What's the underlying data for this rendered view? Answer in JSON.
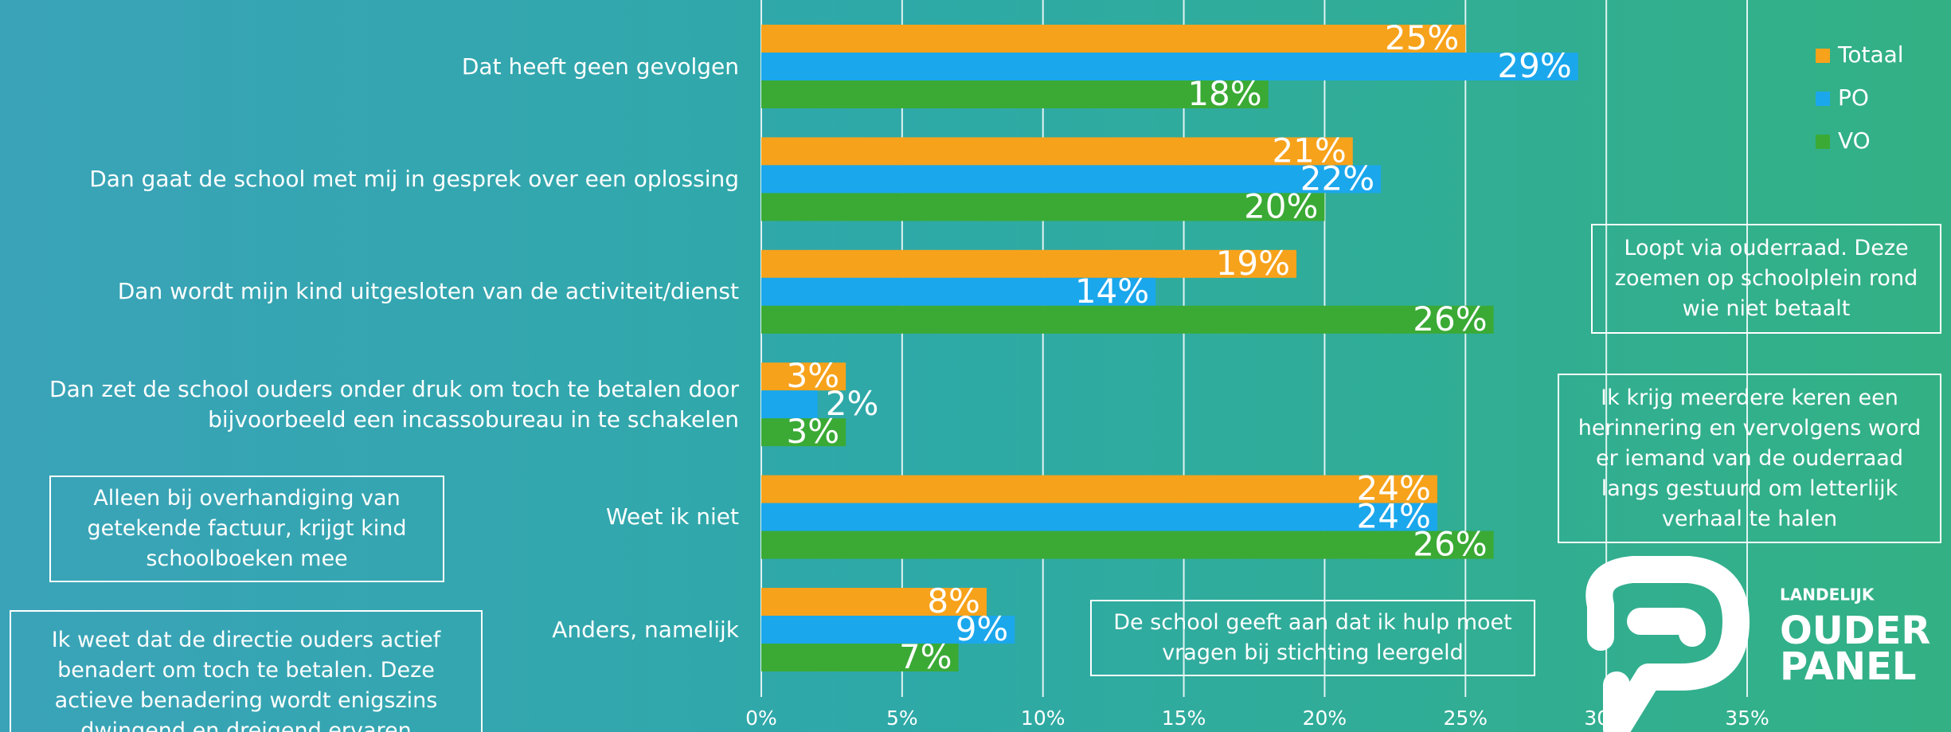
{
  "chart_data": {
    "type": "hbar",
    "categories": [
      "Dat heeft geen gevolgen",
      "Dan gaat de school met mij in gesprek over een oplossing",
      "Dan wordt mijn kind uitgesloten van de activiteit/dienst",
      "Dan zet de school ouders onder druk om toch te betalen door bijvoorbeeld een incassobureau in te schakelen",
      "Weet ik niet",
      "Anders, namelijk"
    ],
    "series": [
      {
        "name": "Totaal",
        "color": "#f7a21b",
        "values": [
          25,
          21,
          19,
          3,
          24,
          8
        ],
        "value_labels": [
          "25%",
          "21%",
          "19%",
          "3%",
          "24%",
          "8%"
        ]
      },
      {
        "name": "PO",
        "color": "#1ba7ec",
        "values": [
          29,
          22,
          14,
          2,
          24,
          9
        ],
        "value_labels": [
          "29%",
          "22%",
          "14%",
          "2%",
          "24%",
          "9%"
        ]
      },
      {
        "name": "VO",
        "color": "#3aaa35",
        "values": [
          18,
          20,
          26,
          3,
          26,
          7
        ],
        "value_labels": [
          "18%",
          "20%",
          "26%",
          "3%",
          "26%",
          "7%"
        ]
      }
    ],
    "xlim": [
      0,
      35
    ],
    "xticks": [
      {
        "value": 0,
        "label": "0%"
      },
      {
        "value": 5,
        "label": "5%"
      },
      {
        "value": 10,
        "label": "10%"
      },
      {
        "value": 15,
        "label": "15%"
      },
      {
        "value": 20,
        "label": "20%"
      },
      {
        "value": 25,
        "label": "25%"
      },
      {
        "value": 30,
        "label": "30%"
      },
      {
        "value": 35,
        "label": "35%"
      }
    ],
    "grid": true,
    "legend": "top-right",
    "annotations": [
      "Loopt via ouderraad. Deze zoemen op schoolplein rond wie niet betaalt",
      "Ik krijg meerdere keren een herinnering en vervolgens word er iemand van de ouderraad langs gestuurd om letterlijk verhaal te halen",
      "Alleen bij overhandiging van getekende factuur, krijgt kind schoolboeken mee",
      "Ik weet dat de directie ouders actief benadert om toch te betalen. Deze actieve benadering wordt enigszins dwingend en dreigend ervaren",
      "De school geeft aan dat ik hulp moet vragen bij stichting leergeld"
    ],
    "logo": [
      "LANDELIJK",
      "OUDER",
      "PANEL"
    ]
  }
}
